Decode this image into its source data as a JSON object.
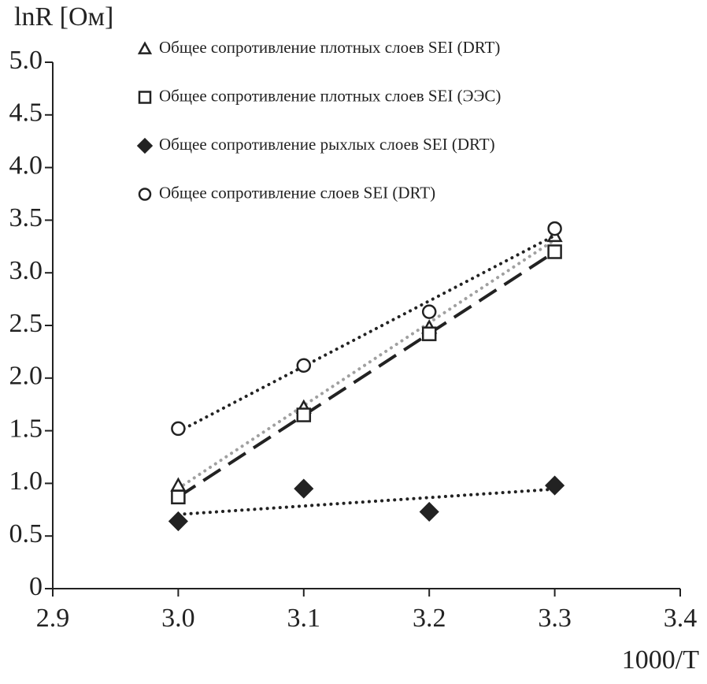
{
  "chart_data": {
    "type": "scatter",
    "y_label": "lnR [Ом]",
    "x_label": "1000/T",
    "xlim": [
      2.9,
      3.4
    ],
    "xticks": [
      2.9,
      {
        "value": 3.0,
        "label": "3.0"
      },
      3.1,
      3.2,
      3.3,
      3.4
    ],
    "ylim": [
      0,
      5
    ],
    "yticks": [
      0,
      {
        "value": 0.5,
        "label": "0.5"
      },
      {
        "value": 1,
        "label": "1.0"
      },
      {
        "value": 1.5,
        "label": "1.5"
      },
      {
        "value": 2,
        "label": "2.0"
      },
      {
        "value": 2.5,
        "label": "2.5"
      },
      {
        "value": 3,
        "label": "3.0"
      },
      {
        "value": 3.5,
        "label": "3.5"
      },
      {
        "value": 4,
        "label": "4.0"
      },
      {
        "value": 4.5,
        "label": "4.5"
      },
      {
        "value": 5,
        "label": "5.0"
      }
    ],
    "grid": false,
    "trendline": "linear",
    "legend": "top",
    "series": [
      {
        "name": "Общее сопротивление плотных слоев SEI (DRT)",
        "marker": "triangle",
        "color": "#222222",
        "trend_color": "#a0a0a0",
        "trend_style": "dotted",
        "x": [
          3.0,
          3.1,
          3.2,
          3.3
        ],
        "values": [
          0.98,
          1.72,
          2.48,
          3.35
        ]
      },
      {
        "name": "Общее сопротивление плотных слоев SEI (ЭЭС)",
        "marker": "square",
        "color": "#222222",
        "trend_color": "#222222",
        "trend_style": "dashed",
        "x": [
          3.0,
          3.1,
          3.2,
          3.3
        ],
        "values": [
          0.87,
          1.65,
          2.42,
          3.2
        ]
      },
      {
        "name": "Общее сопротивление рыхлых слоев SEI (DRT)",
        "marker": "diamond",
        "color": "#222222",
        "trend_color": "#222222",
        "trend_style": "dotted",
        "x": [
          3.0,
          3.1,
          3.2,
          3.3
        ],
        "values": [
          0.64,
          0.95,
          0.73,
          0.98
        ]
      },
      {
        "name": "Общее сопротивление слоев SEI (DRT)",
        "marker": "circle",
        "color": "#222222",
        "trend_color": "#222222",
        "trend_style": "dotted",
        "x": [
          3.0,
          3.1,
          3.2,
          3.3
        ],
        "values": [
          1.52,
          2.12,
          2.63,
          3.42
        ]
      }
    ]
  }
}
